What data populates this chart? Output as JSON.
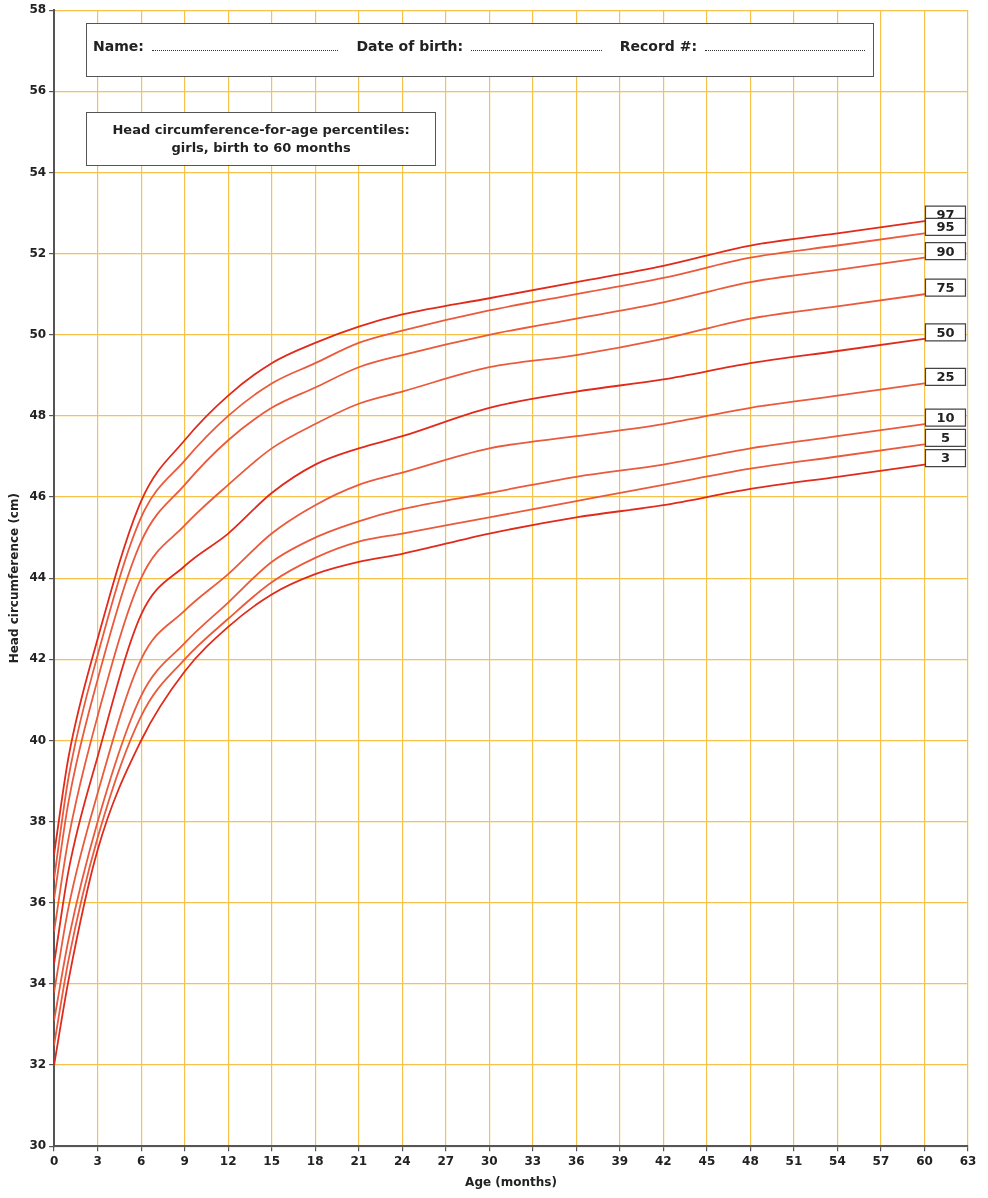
{
  "chart_data": {
    "type": "line",
    "title": "Head circumference-for-age percentiles: girls, birth to 60 months",
    "xlabel": "Age (months)",
    "ylabel": "Head circumference (cm)",
    "annotations": [
      "Name:",
      "Date of birth:",
      "Record #:"
    ],
    "x": [
      0,
      1,
      3,
      6,
      9,
      12,
      15,
      18,
      21,
      24,
      30,
      36,
      42,
      48,
      54,
      60
    ],
    "series": [
      {
        "name": "97",
        "color": "#e02a1c",
        "values": [
          37.2,
          39.6,
          42.5,
          45.9,
          47.4,
          48.5,
          49.3,
          49.8,
          50.2,
          50.5,
          50.9,
          51.3,
          51.7,
          52.2,
          52.5,
          52.8
        ]
      },
      {
        "name": "95",
        "color": "#ea5a3c",
        "values": [
          36.6,
          39.1,
          42.1,
          45.5,
          46.9,
          48.0,
          48.8,
          49.3,
          49.8,
          50.1,
          50.6,
          51.0,
          51.4,
          51.9,
          52.2,
          52.5
        ]
      },
      {
        "name": "90",
        "color": "#ea5a3c",
        "values": [
          36.1,
          38.5,
          41.5,
          44.9,
          46.3,
          47.4,
          48.2,
          48.7,
          49.2,
          49.5,
          50.0,
          50.4,
          50.8,
          51.3,
          51.6,
          51.9
        ]
      },
      {
        "name": "75",
        "color": "#ea5a3c",
        "values": [
          35.3,
          37.6,
          40.6,
          44.0,
          45.3,
          46.3,
          47.2,
          47.8,
          48.3,
          48.6,
          49.2,
          49.5,
          49.9,
          50.4,
          50.7,
          51.0
        ]
      },
      {
        "name": "50",
        "color": "#e02a1c",
        "values": [
          34.5,
          36.8,
          39.6,
          43.1,
          44.3,
          45.1,
          46.1,
          46.8,
          47.2,
          47.5,
          48.2,
          48.6,
          48.9,
          49.3,
          49.6,
          49.9
        ]
      },
      {
        "name": "25",
        "color": "#ea5a3c",
        "values": [
          33.8,
          35.9,
          38.7,
          42.0,
          43.2,
          44.1,
          45.1,
          45.8,
          46.3,
          46.6,
          47.2,
          47.5,
          47.8,
          48.2,
          48.5,
          48.8
        ]
      },
      {
        "name": "10",
        "color": "#ea5a3c",
        "values": [
          33.1,
          35.1,
          38.0,
          41.1,
          42.4,
          43.4,
          44.4,
          45.0,
          45.4,
          45.7,
          46.1,
          46.5,
          46.8,
          47.2,
          47.5,
          47.8
        ]
      },
      {
        "name": "5",
        "color": "#ea5a3c",
        "values": [
          32.5,
          34.6,
          37.6,
          40.6,
          42.0,
          43.0,
          43.9,
          44.5,
          44.9,
          45.1,
          45.5,
          45.9,
          46.3,
          46.7,
          47.0,
          47.3
        ]
      },
      {
        "name": "3",
        "color": "#e02a1c",
        "values": [
          32.0,
          34.1,
          37.3,
          40.0,
          41.7,
          42.8,
          43.6,
          44.1,
          44.4,
          44.6,
          45.1,
          45.5,
          45.8,
          46.2,
          46.5,
          46.8
        ]
      }
    ],
    "xlim": [
      0,
      63
    ],
    "xticks": [
      0,
      3,
      6,
      9,
      12,
      15,
      18,
      21,
      24,
      27,
      30,
      33,
      36,
      39,
      42,
      45,
      48,
      51,
      54,
      57,
      60,
      63
    ],
    "ylim": [
      30,
      58
    ],
    "yticks": [
      30,
      32,
      34,
      36,
      38,
      40,
      42,
      44,
      46,
      48,
      50,
      52,
      54,
      56,
      58
    ],
    "grid": true,
    "legend": false,
    "marker": "none",
    "line_style": "solid"
  }
}
